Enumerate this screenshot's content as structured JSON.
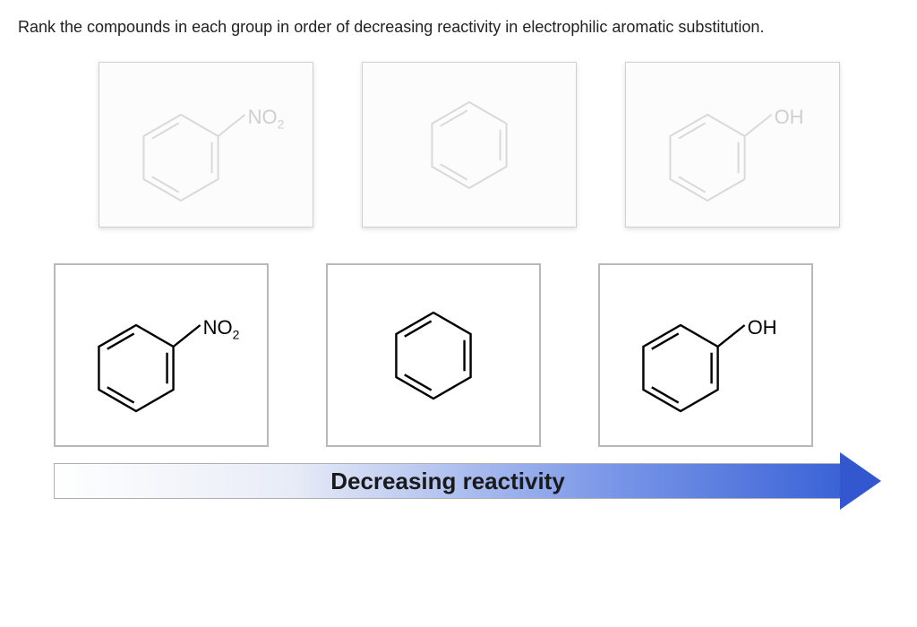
{
  "question_text": "Rank the compounds in each group in order of decreasing reactivity in electrophilic aromatic substitution.",
  "arrow_label": "Decreasing reactivity",
  "colors": {
    "faint_stroke": "#d9d9d9",
    "faint_text": "#cfcfcf",
    "dark_stroke": "#000000",
    "dark_text": "#000000",
    "card_border_source": "#d0d0d0",
    "card_border_answer": "#b8b8b8",
    "arrow_gradient_start": "#ffffff",
    "arrow_gradient_end": "#3b63d6",
    "arrow_head": "#3257cf"
  },
  "compounds": {
    "source": [
      {
        "type": "nitrobenzene",
        "substituent": "NO",
        "sub": "2",
        "stroke": "#d9d9d9",
        "text_color": "#cfcfcf"
      },
      {
        "type": "benzene",
        "substituent": "",
        "sub": "",
        "stroke": "#d9d9d9",
        "text_color": "#cfcfcf"
      },
      {
        "type": "phenol",
        "substituent": "OH",
        "sub": "",
        "stroke": "#d9d9d9",
        "text_color": "#cfcfcf"
      }
    ],
    "answer": [
      {
        "type": "nitrobenzene",
        "substituent": "NO",
        "sub": "2",
        "stroke": "#000000",
        "text_color": "#000000"
      },
      {
        "type": "benzene",
        "substituent": "",
        "sub": "",
        "stroke": "#000000",
        "text_color": "#000000"
      },
      {
        "type": "phenol",
        "substituent": "OH",
        "sub": "",
        "stroke": "#000000",
        "text_color": "#000000"
      }
    ]
  },
  "hexagon": {
    "stroke_width_source": 2,
    "stroke_width_answer": 2.4,
    "size": 48
  }
}
